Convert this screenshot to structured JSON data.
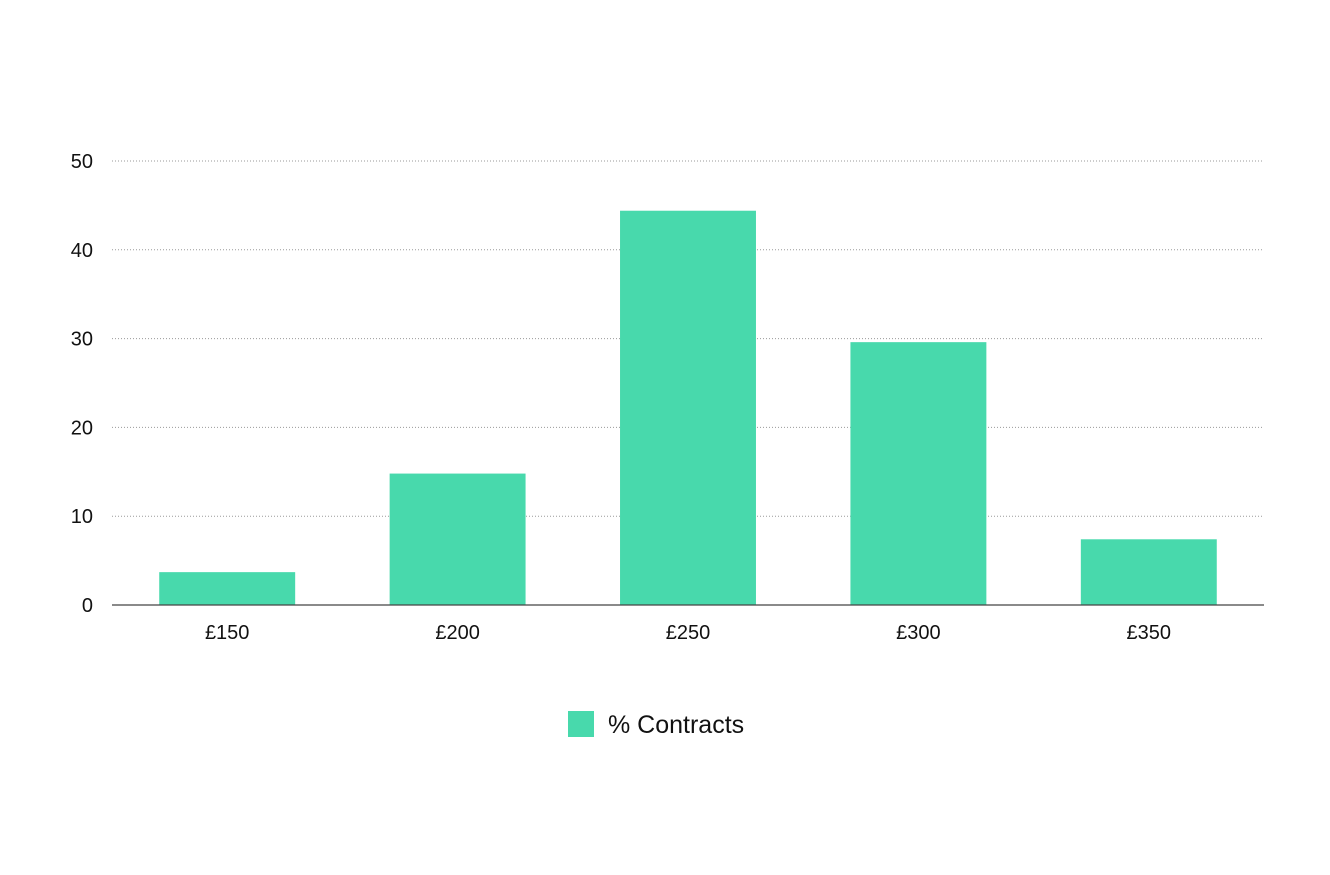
{
  "chart_data": {
    "type": "bar",
    "categories": [
      "£150",
      "£200",
      "£250",
      "£300",
      "£350"
    ],
    "series": [
      {
        "name": "% Contracts",
        "values": [
          3.7,
          14.8,
          44.4,
          29.6,
          7.4
        ],
        "color": "#48D9AC"
      }
    ],
    "title": "",
    "xlabel": "",
    "ylabel": "",
    "ylim": [
      0,
      50
    ],
    "yticks": [
      0,
      10,
      20,
      30,
      40,
      50
    ],
    "grid": true,
    "legend_position": "bottom-center"
  }
}
